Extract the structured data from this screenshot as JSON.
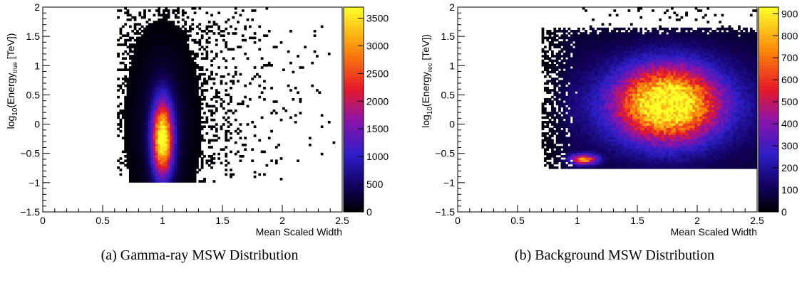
{
  "chart_data": [
    {
      "type": "heatmap",
      "caption": "(a) Gamma-ray MSW Distribution",
      "xlabel": "Mean Scaled Width",
      "ylabel_prefix": "log",
      "ylabel_base": "10",
      "ylabel_mid": "(Energy",
      "ylabel_sub": "true",
      "ylabel_suffix": " [TeV])",
      "xlim": [
        0,
        2.5
      ],
      "ylim": [
        -1.5,
        2
      ],
      "xticks": [
        "0",
        "0.5",
        "1",
        "1.5",
        "2",
        "2.5"
      ],
      "yticks": [
        "−1.5",
        "−1",
        "−0.5",
        "0",
        "0.5",
        "1",
        "1.5",
        "2"
      ],
      "colorbar": {
        "range": [
          0,
          3700
        ],
        "ticks": [
          "0",
          "500",
          "1000",
          "1500",
          "2000",
          "2500",
          "3000",
          "3500"
        ]
      },
      "distribution": {
        "core": {
          "x_center": 1.0,
          "y_center": -0.25,
          "x_width": 0.06,
          "y_width": 0.45,
          "peak": 3700
        },
        "halo": {
          "x_center": 1.0,
          "y_center": 0.0,
          "x_width": 0.16,
          "y_width": 0.9
        },
        "support": {
          "y_min": -1.0,
          "y_max": 2.0
        },
        "tail": {
          "x_max": 2.45,
          "y_min": -0.5,
          "y_max": 1.7
        }
      }
    },
    {
      "type": "heatmap",
      "caption": "(b) Background MSW Distribution",
      "xlabel": "Mean Scaled Width",
      "ylabel_prefix": "log",
      "ylabel_base": "10",
      "ylabel_mid": "(Energy",
      "ylabel_sub": "rec",
      "ylabel_suffix": " [TeV])",
      "xlim": [
        0,
        2.5
      ],
      "ylim": [
        -1.5,
        2
      ],
      "xticks": [
        "0",
        "0.5",
        "1",
        "1.5",
        "2",
        "2.5"
      ],
      "yticks": [
        "−1.5",
        "−1",
        "−0.5",
        "0",
        "0.5",
        "1",
        "1.5",
        "2"
      ],
      "colorbar": {
        "range": [
          0,
          930
        ],
        "ticks": [
          "0",
          "100",
          "200",
          "300",
          "400",
          "500",
          "600",
          "700",
          "800",
          "900"
        ]
      },
      "distribution": {
        "main": {
          "x_center": 1.75,
          "y_center": 0.35,
          "x_width": 0.3,
          "y_width": 0.45,
          "peak": 900
        },
        "low_energy_spot": {
          "x_center": 1.05,
          "y_center": -0.6,
          "x_width": 0.08,
          "y_width": 0.06,
          "peak": 650
        },
        "support": {
          "x_min": 0.7,
          "x_max": 2.5,
          "y_min": -0.75,
          "y_max": 1.65
        }
      }
    }
  ]
}
